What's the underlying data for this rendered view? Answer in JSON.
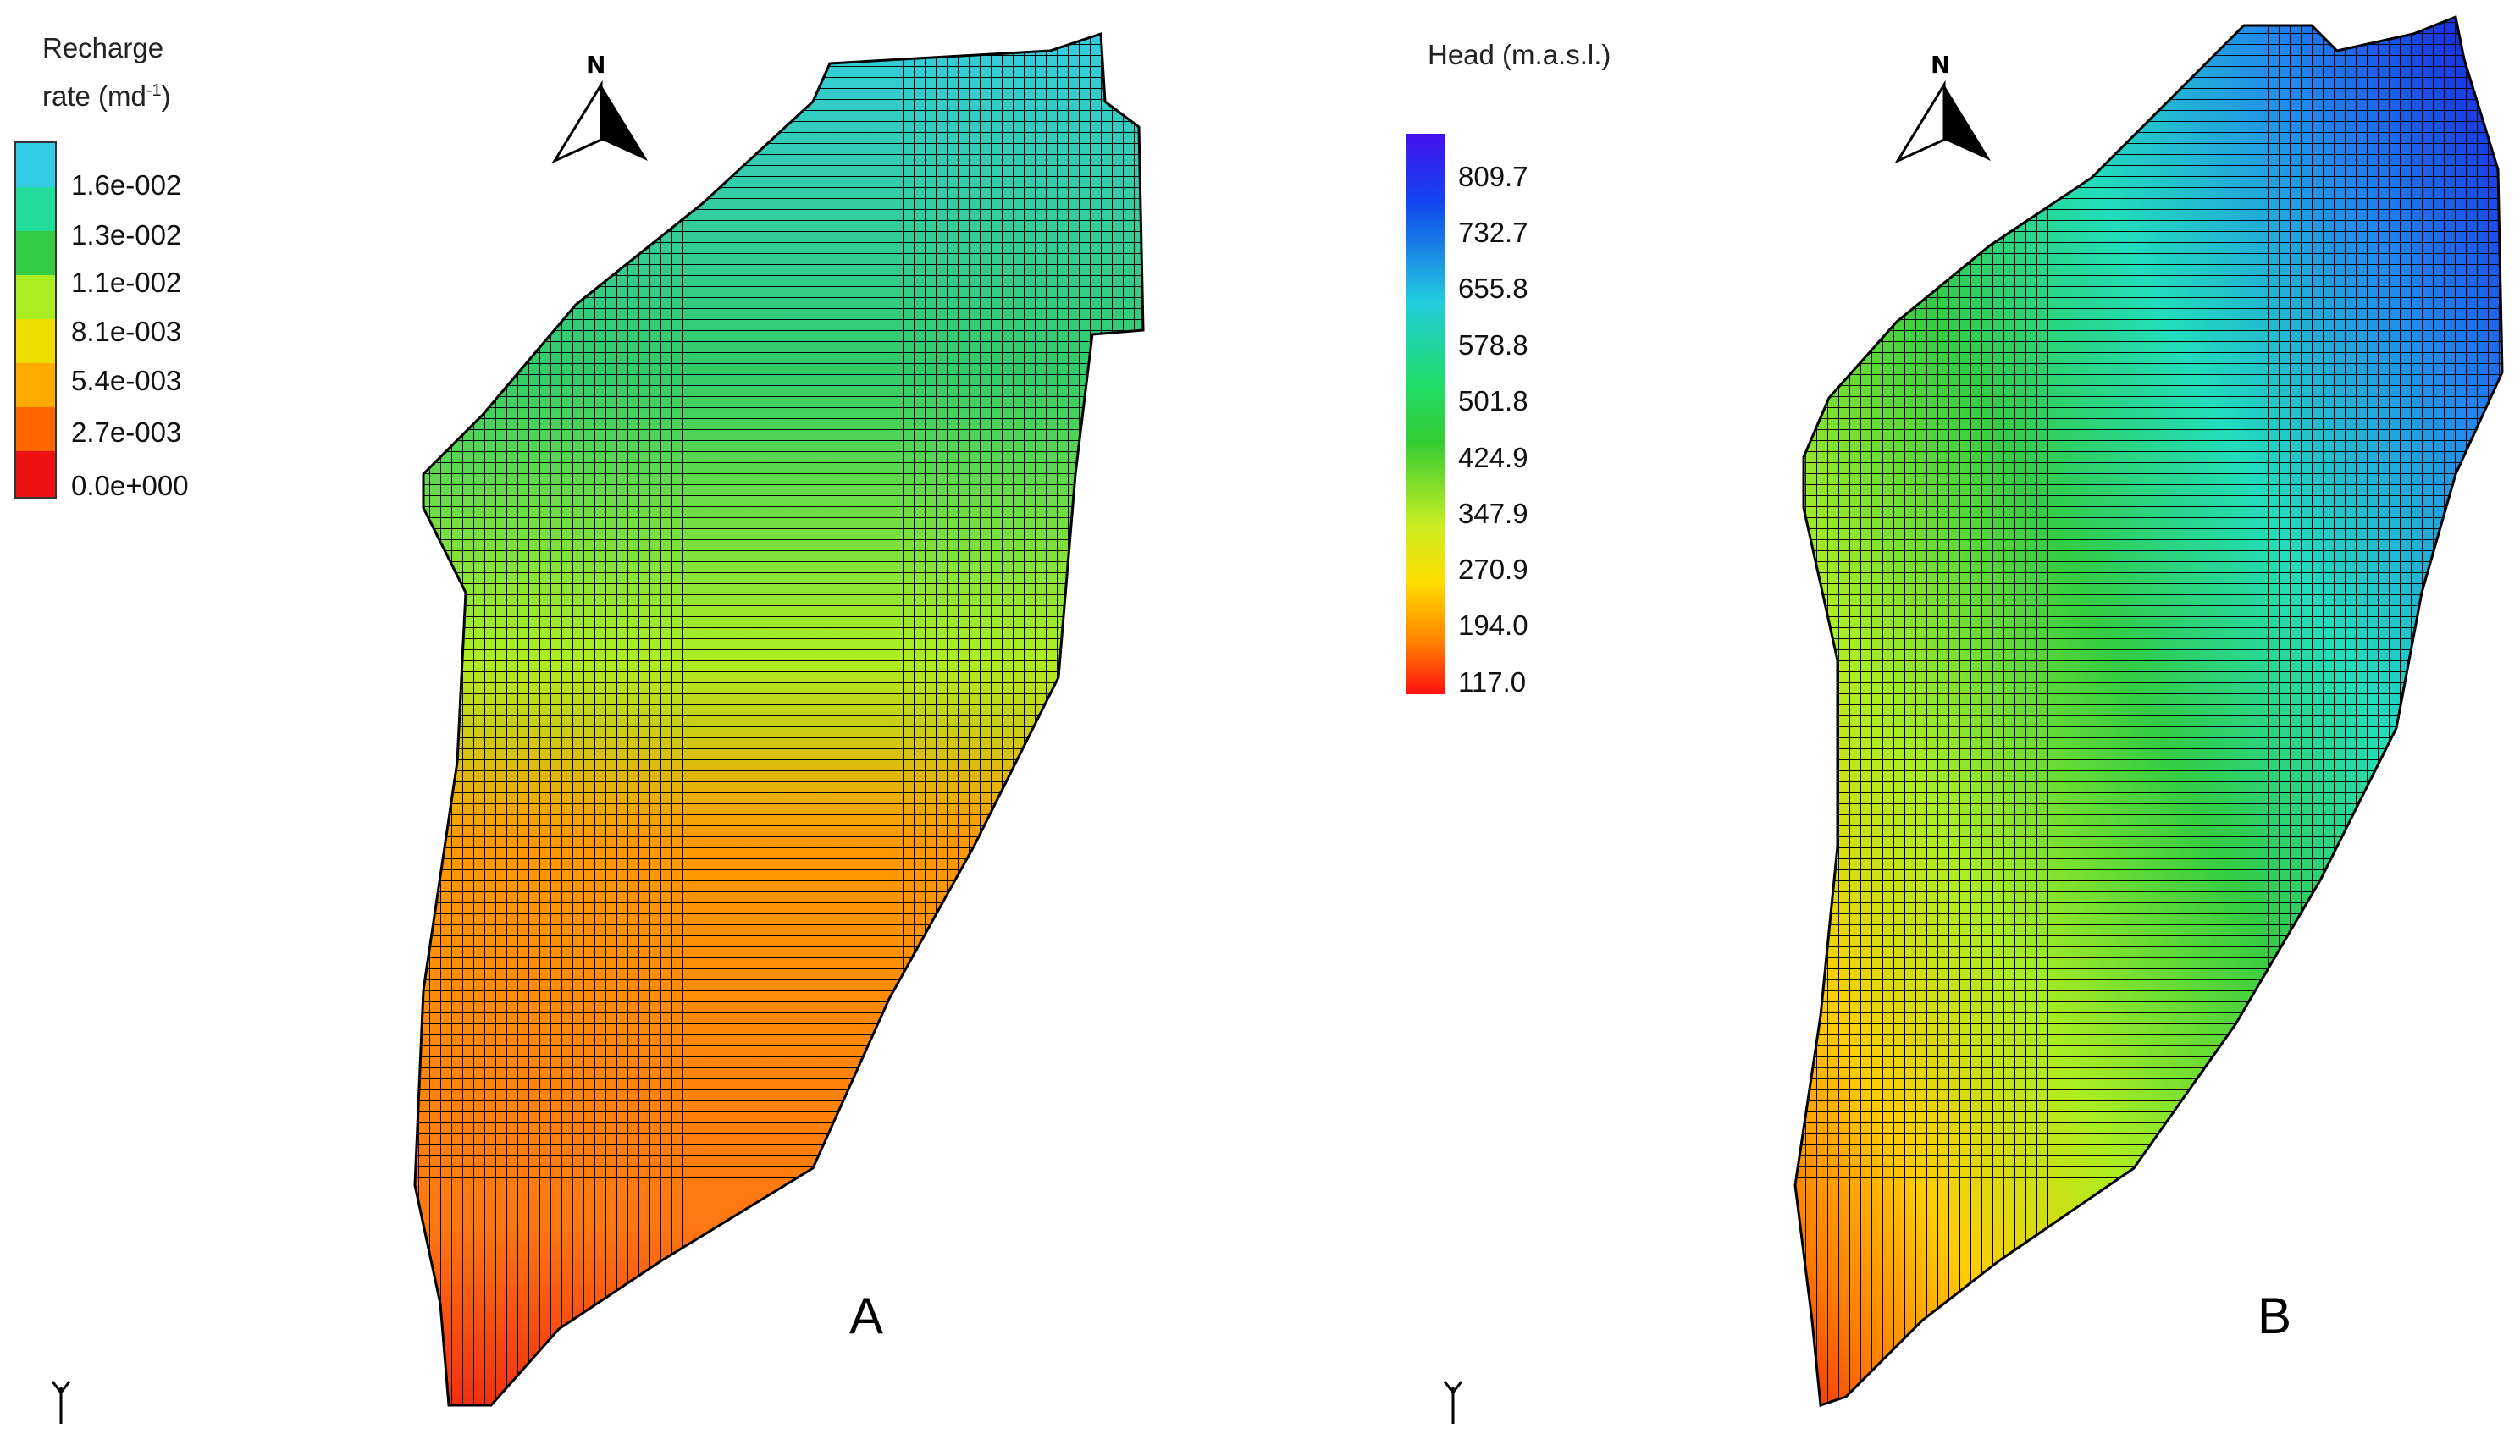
{
  "panels": [
    {
      "id": "A",
      "label": "A",
      "legend": {
        "title_line1": "Recharge",
        "title_line2_prefix": "rate (md",
        "title_sup": "-1",
        "title_line2_suffix": ")",
        "ticks": [
          "1.6e-002",
          "1.3e-002",
          "1.1e-002",
          "8.1e-003",
          "5.4e-003",
          "2.7e-003",
          "0.0e+000"
        ],
        "colors": [
          "#33cce6",
          "#22dd99",
          "#33cc33",
          "#aaee22",
          "#eedd00",
          "#ff8800",
          "#ff3300",
          "#ee1111"
        ]
      },
      "north_label": "N"
    },
    {
      "id": "B",
      "label": "B",
      "legend": {
        "title": "Head (m.a.s.l.)",
        "ticks": [
          "809.7",
          "732.7",
          "655.8",
          "578.8",
          "501.8",
          "424.9",
          "347.9",
          "270.9",
          "194.0",
          "117.0"
        ]
      },
      "north_label": "N"
    }
  ]
}
